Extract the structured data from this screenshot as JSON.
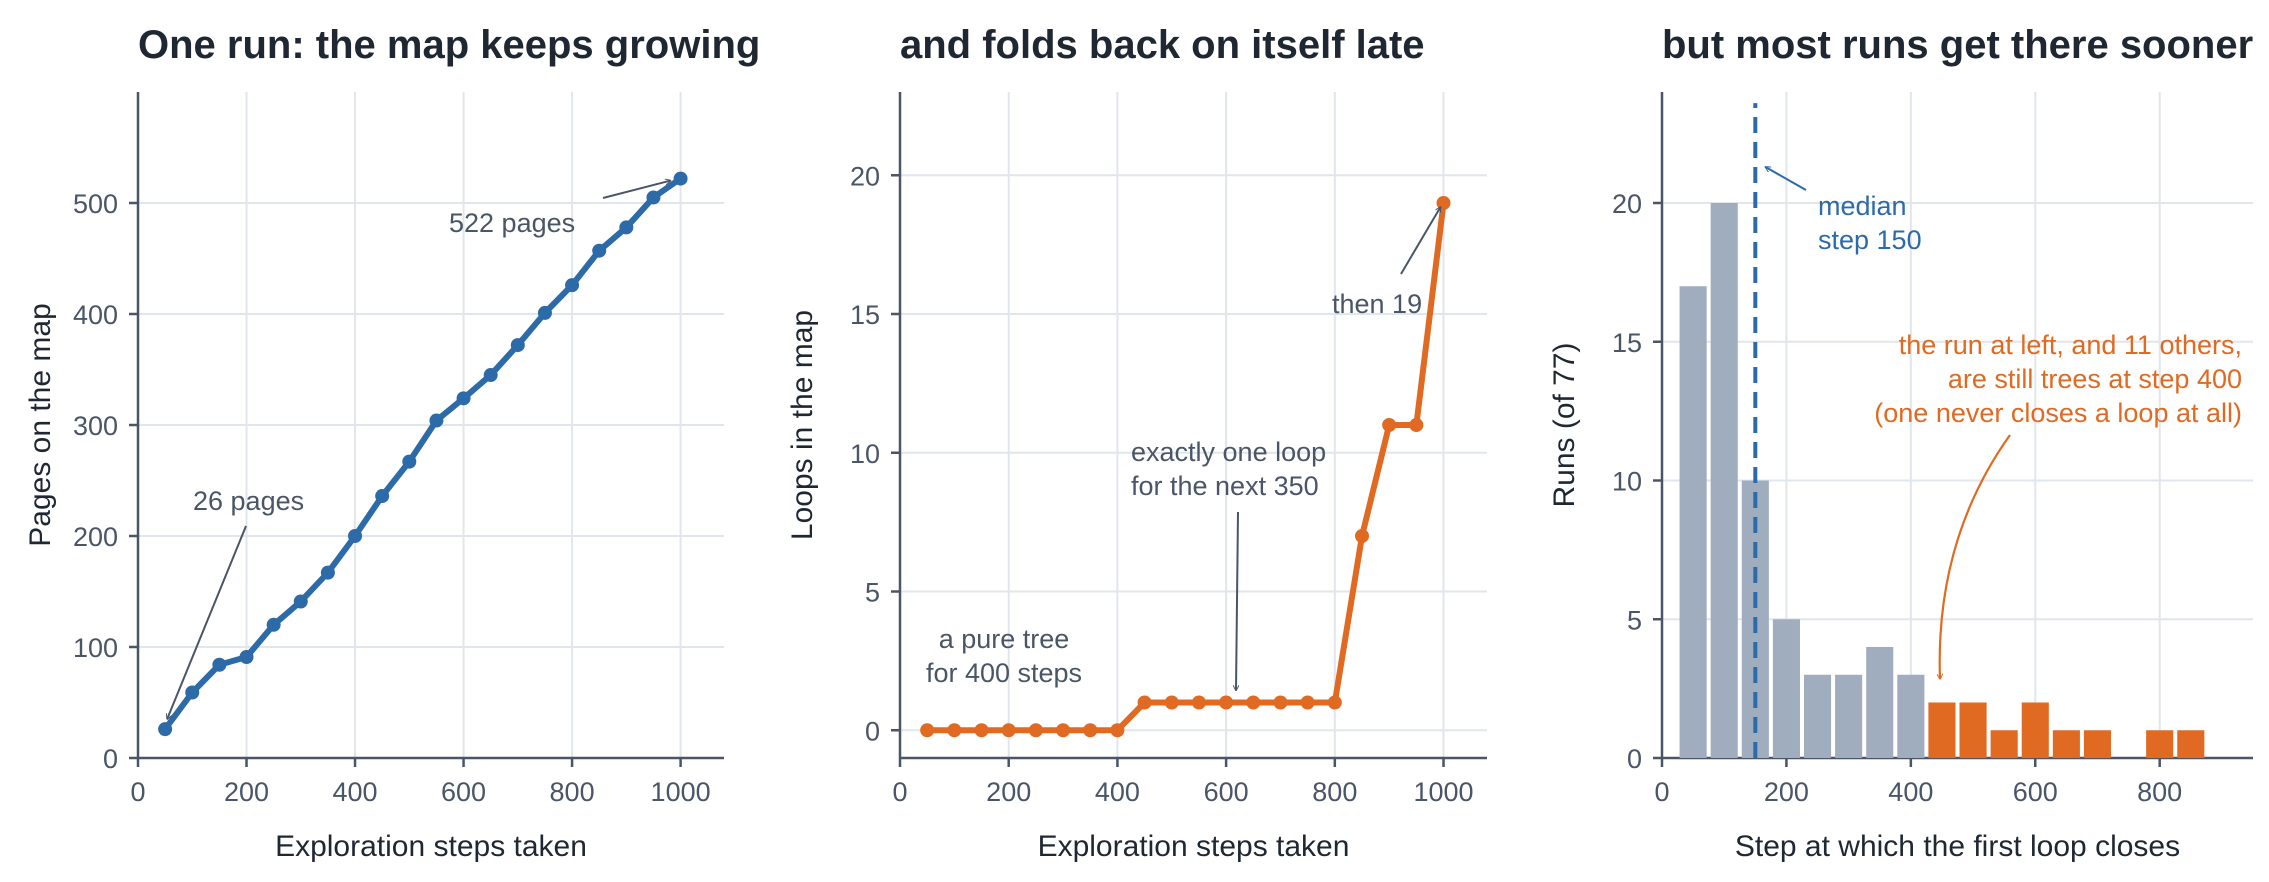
{
  "colors": {
    "blue": "#2d6aa8",
    "orange": "#e06a22",
    "gray": "#a0adbf",
    "annot": "#4a5567",
    "grid": "#e1e6ec"
  },
  "chart_data": [
    {
      "type": "line",
      "title": "One run: the map keeps growing",
      "xlabel": "Exploration steps taken",
      "ylabel": "Pages on the map",
      "xlim": [
        0,
        1080
      ],
      "ylim": [
        0,
        600
      ],
      "xticks": [
        0,
        200,
        400,
        600,
        800,
        1000
      ],
      "yticks": [
        0,
        100,
        200,
        300,
        400,
        500
      ],
      "grid": true,
      "x": [
        50,
        100,
        150,
        200,
        250,
        300,
        350,
        400,
        450,
        500,
        550,
        600,
        650,
        700,
        750,
        800,
        850,
        900,
        950,
        1000
      ],
      "series": [
        {
          "values": [
            26,
            59,
            84,
            91,
            120,
            141,
            167,
            200,
            236,
            267,
            304,
            324,
            345,
            372,
            401,
            426,
            457,
            478,
            505,
            522
          ]
        }
      ],
      "annotations": [
        {
          "text": "26 pages",
          "x": 50,
          "y": 26
        },
        {
          "text": "522 pages",
          "x": 1000,
          "y": 522
        }
      ]
    },
    {
      "type": "line",
      "title": "and folds back on itself late",
      "xlabel": "Exploration steps taken",
      "ylabel": "Loops in the map",
      "xlim": [
        0,
        1080
      ],
      "ylim": [
        -1,
        23
      ],
      "xticks": [
        0,
        200,
        400,
        600,
        800,
        1000
      ],
      "yticks": [
        0,
        5,
        10,
        15,
        20
      ],
      "grid": true,
      "x": [
        50,
        100,
        150,
        200,
        250,
        300,
        350,
        400,
        450,
        500,
        550,
        600,
        650,
        700,
        750,
        800,
        850,
        900,
        950,
        1000
      ],
      "series": [
        {
          "values": [
            0,
            0,
            0,
            0,
            0,
            0,
            0,
            0,
            1,
            1,
            1,
            1,
            1,
            1,
            1,
            1,
            7,
            11,
            11,
            19
          ]
        }
      ],
      "annotations": [
        {
          "lines": [
            "a pure tree",
            "for 400 steps"
          ]
        },
        {
          "lines": [
            "exactly one loop",
            "for the next 350"
          ],
          "x": 625,
          "y": 1
        },
        {
          "lines": [
            "then 19"
          ],
          "x": 1000,
          "y": 19
        }
      ]
    },
    {
      "type": "bar",
      "title": "but most runs get there sooner",
      "xlabel": "Step at which the first loop closes",
      "ylabel": "Runs (of 77)",
      "xlim": [
        0,
        950
      ],
      "ylim": [
        0,
        24
      ],
      "xticks": [
        0,
        200,
        400,
        600,
        800
      ],
      "yticks": [
        0,
        5,
        10,
        15,
        20
      ],
      "grid": true,
      "bin_width": 50,
      "bins": [
        {
          "x": 50,
          "value": 17,
          "group": "before 400"
        },
        {
          "x": 100,
          "value": 20,
          "group": "before 400"
        },
        {
          "x": 150,
          "value": 10,
          "group": "before 400"
        },
        {
          "x": 200,
          "value": 5,
          "group": "before 400"
        },
        {
          "x": 250,
          "value": 3,
          "group": "before 400"
        },
        {
          "x": 300,
          "value": 3,
          "group": "before 400"
        },
        {
          "x": 350,
          "value": 4,
          "group": "before 400"
        },
        {
          "x": 400,
          "value": 3,
          "group": "before 400"
        },
        {
          "x": 450,
          "value": 2,
          "group": "after 400"
        },
        {
          "x": 500,
          "value": 2,
          "group": "after 400"
        },
        {
          "x": 550,
          "value": 1,
          "group": "after 400"
        },
        {
          "x": 600,
          "value": 2,
          "group": "after 400"
        },
        {
          "x": 650,
          "value": 1,
          "group": "after 400"
        },
        {
          "x": 700,
          "value": 1,
          "group": "after 400"
        },
        {
          "x": 800,
          "value": 1,
          "group": "after 400"
        },
        {
          "x": 850,
          "value": 1,
          "group": "after 400"
        }
      ],
      "median": 150,
      "annotations": [
        {
          "lines": [
            "median",
            "step 150"
          ],
          "x": 150,
          "y": 21.3
        },
        {
          "lines": [
            "the run at left, and 11 others,",
            "are still trees at step 400",
            "(one never closes a loop at all)"
          ],
          "x": 450,
          "y": 2.7
        }
      ]
    }
  ]
}
